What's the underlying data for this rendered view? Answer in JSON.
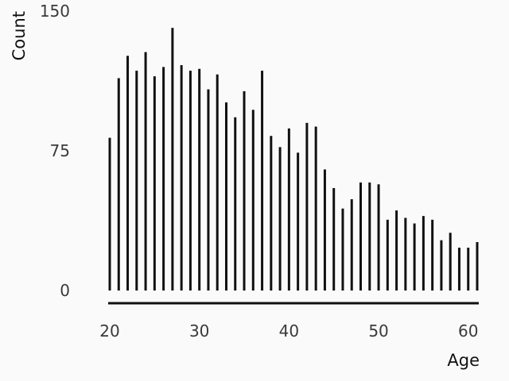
{
  "chart_data": {
    "type": "bar",
    "xlabel": "Age",
    "ylabel": "Count",
    "xlim": [
      20,
      61
    ],
    "ylim": [
      0,
      150
    ],
    "xticks": [
      20,
      30,
      40,
      50,
      60
    ],
    "yticks": [
      0,
      75,
      150
    ],
    "grid": false,
    "bar_color": "#111111",
    "x": [
      20,
      21,
      22,
      23,
      24,
      25,
      26,
      27,
      28,
      29,
      30,
      31,
      32,
      33,
      34,
      35,
      36,
      37,
      38,
      39,
      40,
      41,
      42,
      43,
      44,
      45,
      46,
      47,
      48,
      49,
      50,
      51,
      52,
      53,
      54,
      55,
      56,
      57,
      58,
      59,
      60,
      61
    ],
    "values": [
      82,
      114,
      126,
      118,
      128,
      115,
      120,
      141,
      121,
      118,
      119,
      108,
      116,
      101,
      93,
      107,
      97,
      118,
      83,
      77,
      87,
      74,
      90,
      88,
      65,
      55,
      44,
      49,
      58,
      58,
      57,
      38,
      43,
      39,
      36,
      40,
      38,
      27,
      31,
      23,
      23,
      26
    ]
  }
}
